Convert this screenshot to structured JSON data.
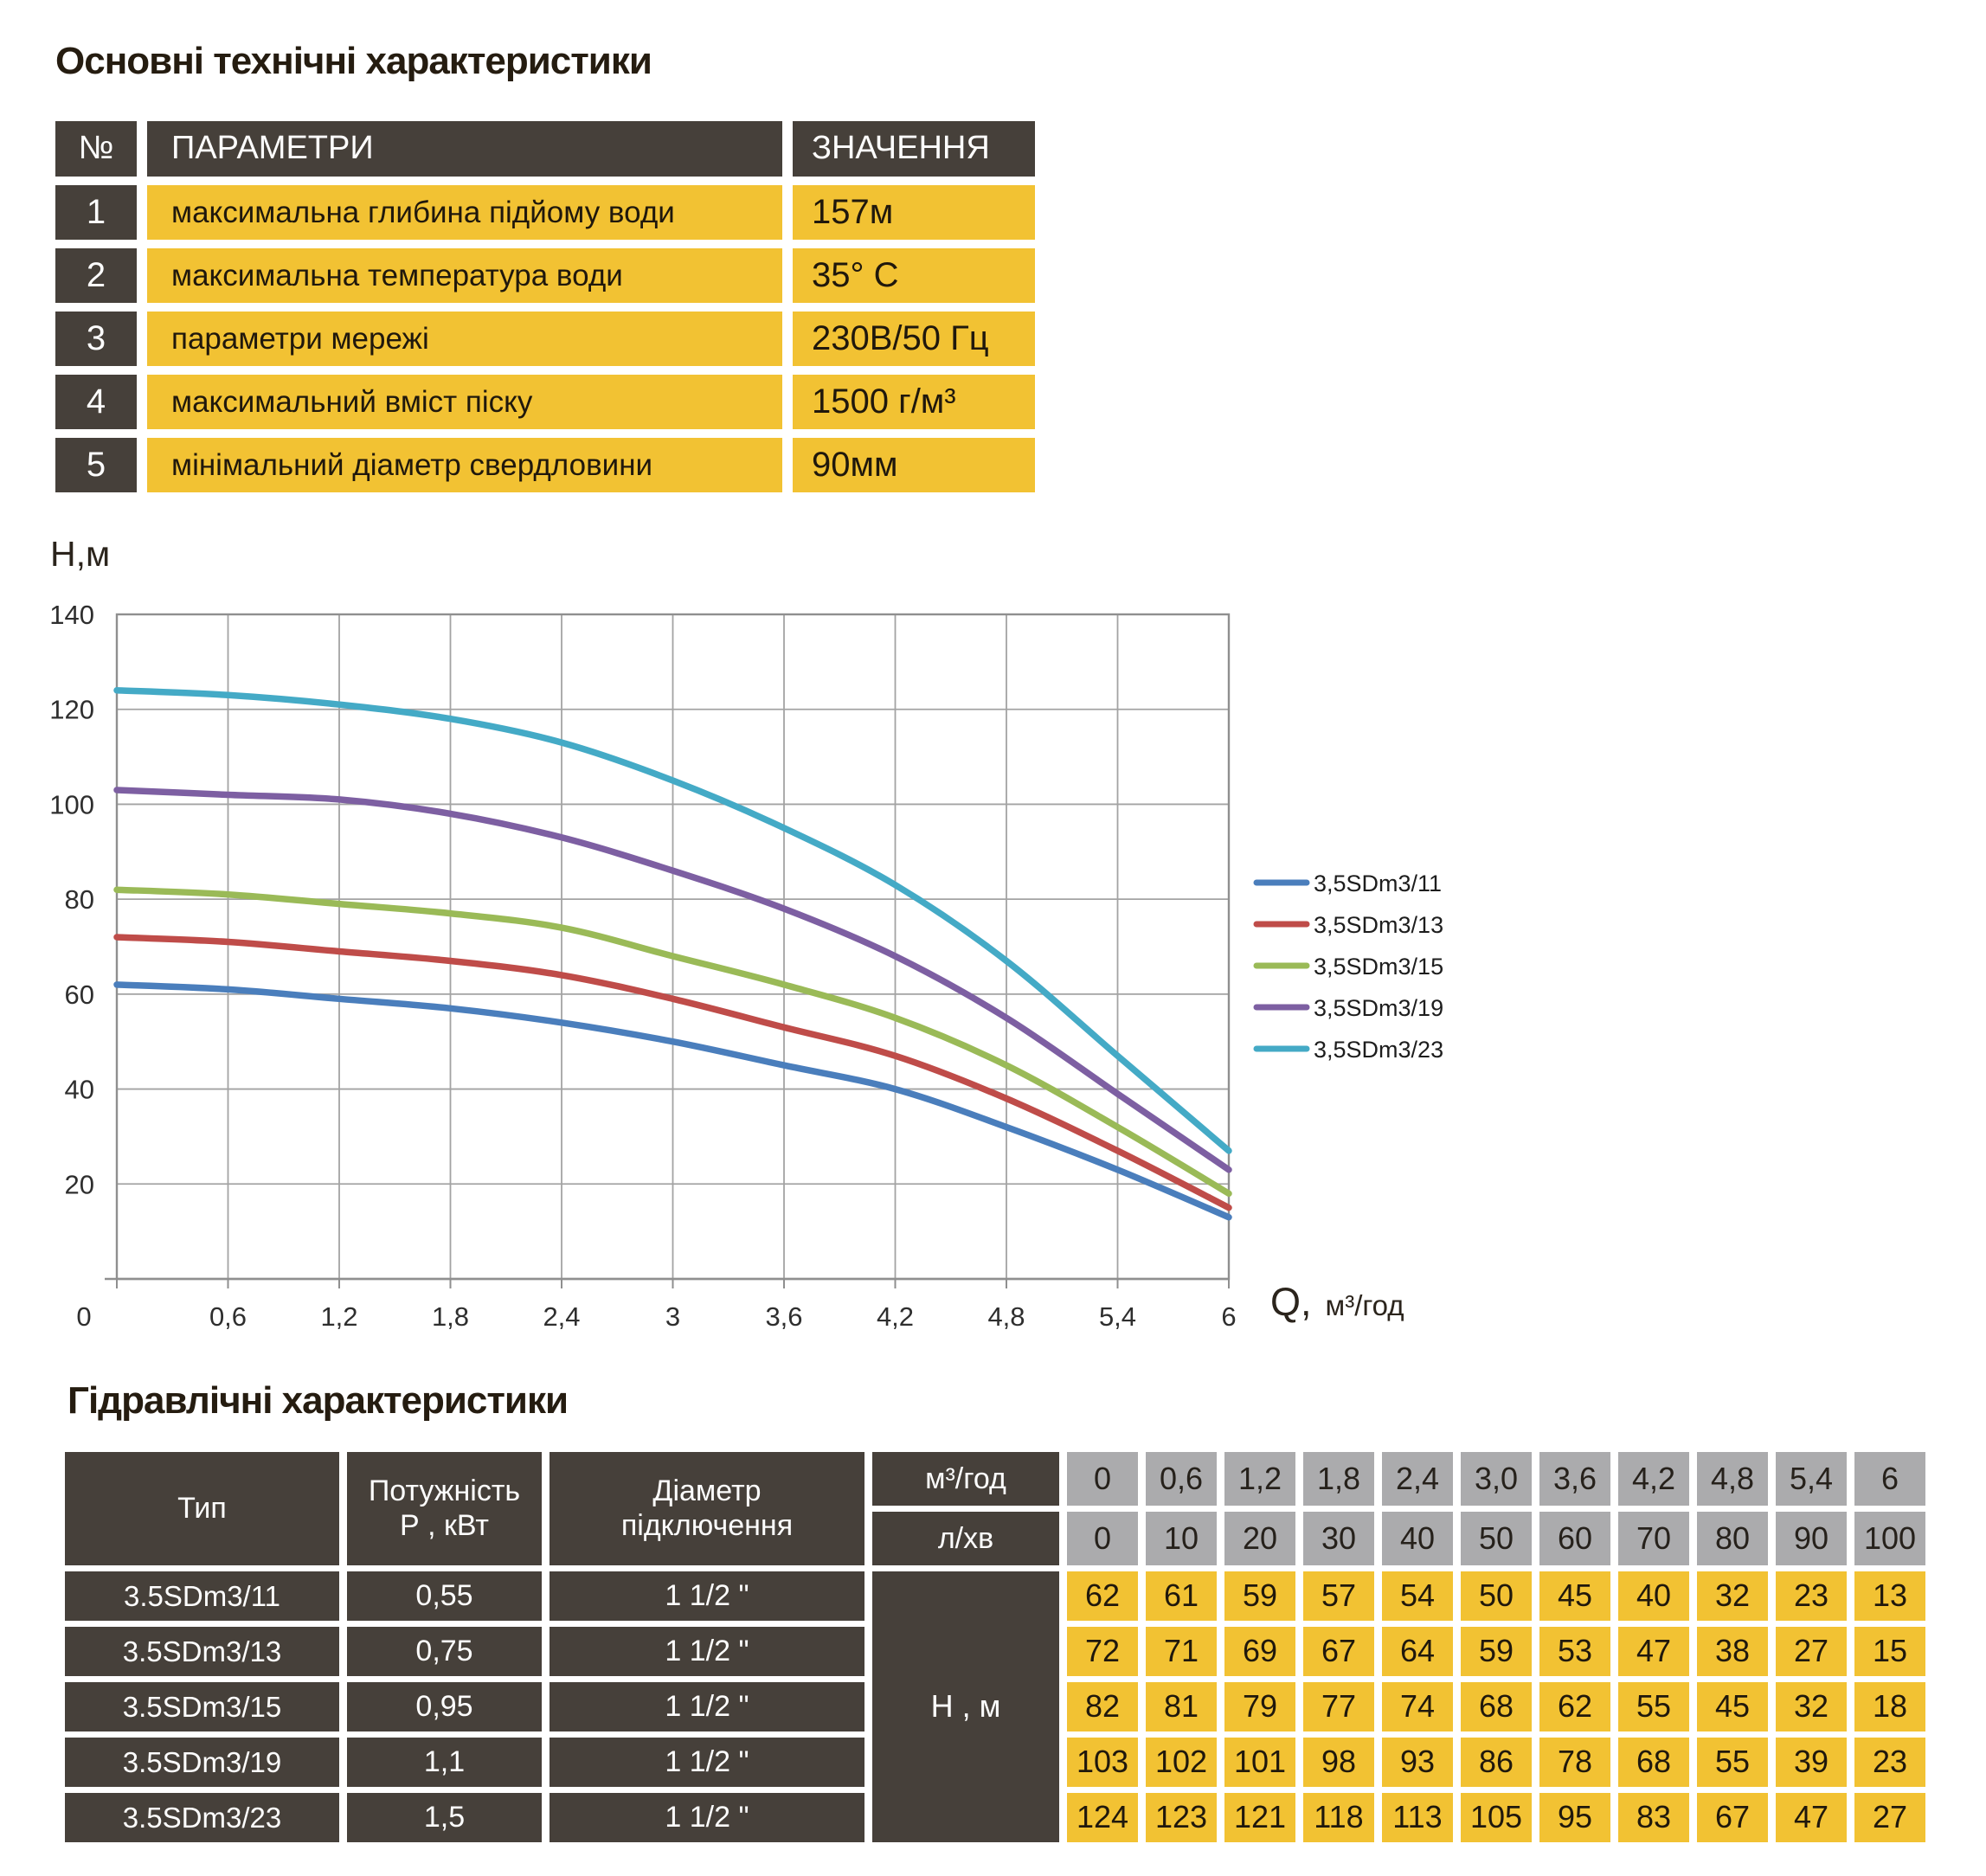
{
  "page": {
    "section1_title": "Основні технічні характеристики",
    "section2_title": "Гідравлічні характеристики"
  },
  "colors": {
    "dark_cell": "#46403A",
    "yellow_cell": "#F2C233",
    "gray_cell": "#ABABAD",
    "series": [
      "#4A7EBC",
      "#BF4C49",
      "#9ABA57",
      "#7D5FA2",
      "#44AAC6"
    ]
  },
  "params_table": {
    "headers": {
      "num": "№",
      "param": "ПАРАМЕТРИ",
      "value": "ЗНАЧЕННЯ"
    },
    "rows": [
      {
        "num": "1",
        "param": "максимальна глибина підйому води",
        "value": "157м"
      },
      {
        "num": "2",
        "param": "максимальна температура води",
        "value": "35° С"
      },
      {
        "num": "3",
        "param": "параметри мережі",
        "value": "230В/50 Гц"
      },
      {
        "num": "4",
        "param": "максимальний вміст піску",
        "value": "1500 г/м³"
      },
      {
        "num": "5",
        "param": "мінімальний діаметр свердловини",
        "value": "90мм"
      }
    ]
  },
  "chart_data": {
    "type": "line",
    "title": "",
    "ylabel": "Н,м",
    "xlabel_main": "Q,",
    "xlabel_unit": "м³/год",
    "xlim": [
      0,
      6
    ],
    "ylim": [
      0,
      140
    ],
    "y_ticks": [
      140,
      120,
      100,
      80,
      60,
      40,
      20
    ],
    "x": [
      0,
      0.6,
      1.2,
      1.8,
      2.4,
      3,
      3.6,
      4.2,
      4.8,
      5.4,
      6
    ],
    "x_tick_labels": [
      "0",
      "0,6",
      "1,2",
      "1,8",
      "2,4",
      "3",
      "3,6",
      "4,2",
      "4,8",
      "5,4",
      "6"
    ],
    "grid": true,
    "legend_position": "right",
    "series": [
      {
        "name": "3,5SDm3/11",
        "color": "#4A7EBC",
        "values": [
          62,
          61,
          59,
          57,
          54,
          50,
          45,
          40,
          32,
          23,
          13
        ]
      },
      {
        "name": "3,5SDm3/13",
        "color": "#BF4C49",
        "values": [
          72,
          71,
          69,
          67,
          64,
          59,
          53,
          47,
          38,
          27,
          15
        ]
      },
      {
        "name": "3,5SDm3/15",
        "color": "#9ABA57",
        "values": [
          82,
          81,
          79,
          77,
          74,
          68,
          62,
          55,
          45,
          32,
          18
        ]
      },
      {
        "name": "3,5SDm3/19",
        "color": "#7D5FA2",
        "values": [
          103,
          102,
          101,
          98,
          93,
          86,
          78,
          68,
          55,
          39,
          23
        ]
      },
      {
        "name": "3,5SDm3/23",
        "color": "#44AAC6",
        "values": [
          124,
          123,
          121,
          118,
          113,
          105,
          95,
          83,
          67,
          47,
          27
        ]
      }
    ]
  },
  "hydraulics_table": {
    "headers": {
      "type": "Тип",
      "power_line1": "Потужність",
      "power_line2": "Р , кВт",
      "diameter_line1": "Діаметр",
      "diameter_line2": "підключення",
      "flow_m3h": "м³/год",
      "flow_lmin": "л/хв",
      "head": "Н , м"
    },
    "flow_m3h_values": [
      "0",
      "0,6",
      "1,2",
      "1,8",
      "2,4",
      "3,0",
      "3,6",
      "4,2",
      "4,8",
      "5,4",
      "6"
    ],
    "flow_lmin_values": [
      "0",
      "10",
      "20",
      "30",
      "40",
      "50",
      "60",
      "70",
      "80",
      "90",
      "100"
    ],
    "rows": [
      {
        "type": "3.5SDm3/11",
        "power": "0,55",
        "diameter": "1 1/2 \"",
        "head_values": [
          "62",
          "61",
          "59",
          "57",
          "54",
          "50",
          "45",
          "40",
          "32",
          "23",
          "13"
        ]
      },
      {
        "type": "3.5SDm3/13",
        "power": "0,75",
        "diameter": "1 1/2 \"",
        "head_values": [
          "72",
          "71",
          "69",
          "67",
          "64",
          "59",
          "53",
          "47",
          "38",
          "27",
          "15"
        ]
      },
      {
        "type": "3.5SDm3/15",
        "power": "0,95",
        "diameter": "1 1/2 \"",
        "head_values": [
          "82",
          "81",
          "79",
          "77",
          "74",
          "68",
          "62",
          "55",
          "45",
          "32",
          "18"
        ]
      },
      {
        "type": "3.5SDm3/19",
        "power": "1,1",
        "diameter": "1 1/2 \"",
        "head_values": [
          "103",
          "102",
          "101",
          "98",
          "93",
          "86",
          "78",
          "68",
          "55",
          "39",
          "23"
        ]
      },
      {
        "type": "3.5SDm3/23",
        "power": "1,5",
        "diameter": "1 1/2 \"",
        "head_values": [
          "124",
          "123",
          "121",
          "118",
          "113",
          "105",
          "95",
          "83",
          "67",
          "47",
          "27"
        ]
      }
    ]
  }
}
